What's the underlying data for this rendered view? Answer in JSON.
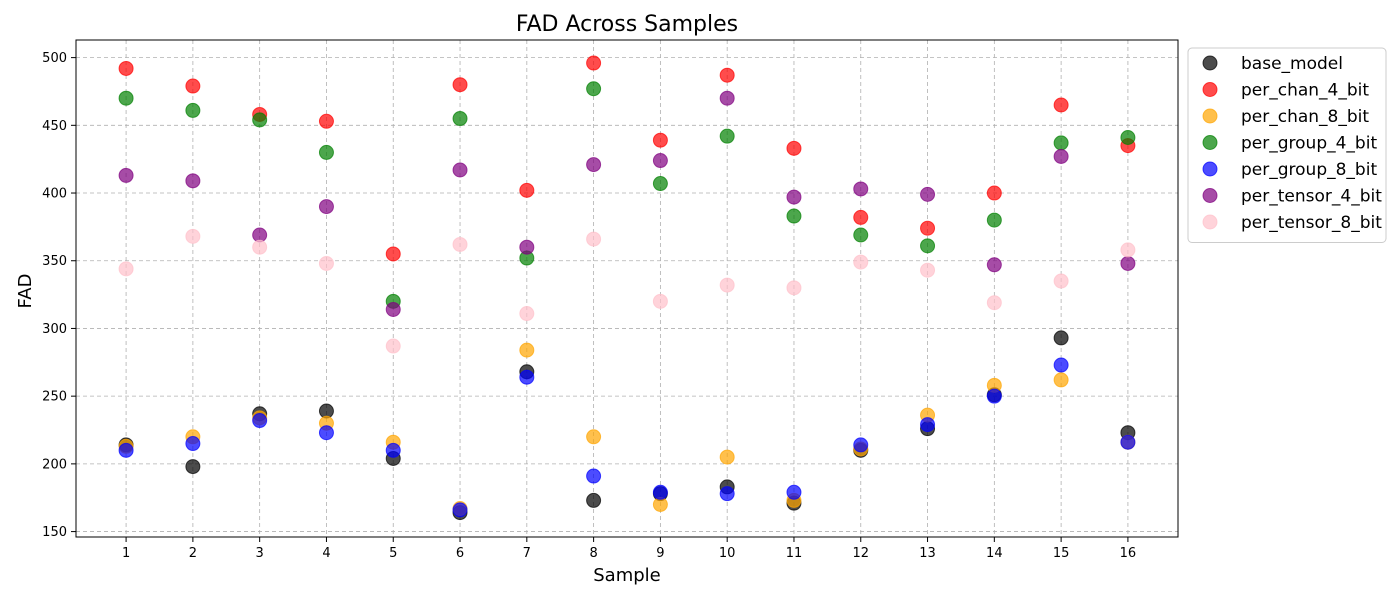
{
  "chart_data": {
    "type": "scatter",
    "title": "FAD Across Samples",
    "xlabel": "Sample",
    "ylabel": "FAD",
    "x": [
      1,
      2,
      3,
      4,
      5,
      6,
      7,
      8,
      9,
      10,
      11,
      12,
      13,
      14,
      15,
      16
    ],
    "x_ticks": [
      "1",
      "2",
      "3",
      "4",
      "5",
      "6",
      "7",
      "8",
      "9",
      "10",
      "11",
      "12",
      "13",
      "14",
      "15",
      "16"
    ],
    "xlim": [
      0.25,
      16.75
    ],
    "ylim": [
      146,
      513
    ],
    "y_ticks": [
      150,
      200,
      250,
      300,
      350,
      400,
      450,
      500
    ],
    "grid": true,
    "legend_position": "outside-top-right",
    "marker_alpha": 0.7,
    "series": [
      {
        "name": "base_model",
        "color": "#000000",
        "values": [
          214,
          198,
          237,
          239,
          204,
          164,
          268,
          173,
          178,
          183,
          171,
          210,
          226,
          251,
          293,
          223
        ]
      },
      {
        "name": "per_chan_4_bit",
        "color": "#ff0000",
        "values": [
          492,
          479,
          458,
          453,
          355,
          480,
          402,
          496,
          439,
          487,
          433,
          382,
          374,
          400,
          465,
          435
        ]
      },
      {
        "name": "per_chan_8_bit",
        "color": "#ffa500",
        "values": [
          213,
          220,
          234,
          230,
          216,
          167,
          284,
          220,
          170,
          205,
          173,
          211,
          236,
          258,
          262,
          216
        ]
      },
      {
        "name": "per_group_4_bit",
        "color": "#008000",
        "values": [
          470,
          461,
          454,
          430,
          320,
          455,
          352,
          477,
          407,
          442,
          383,
          369,
          361,
          380,
          437,
          441
        ]
      },
      {
        "name": "per_group_8_bit",
        "color": "#0000ff",
        "values": [
          210,
          215,
          232,
          223,
          210,
          166,
          264,
          191,
          179,
          178,
          179,
          214,
          229,
          250,
          273,
          216
        ]
      },
      {
        "name": "per_tensor_4_bit",
        "color": "#800080",
        "values": [
          413,
          409,
          369,
          390,
          314,
          417,
          360,
          421,
          424,
          470,
          397,
          403,
          399,
          347,
          427,
          348
        ]
      },
      {
        "name": "per_tensor_8_bit",
        "color": "#ffc0cb",
        "values": [
          344,
          368,
          360,
          348,
          287,
          362,
          311,
          366,
          320,
          332,
          330,
          349,
          343,
          319,
          335,
          358
        ]
      }
    ]
  }
}
